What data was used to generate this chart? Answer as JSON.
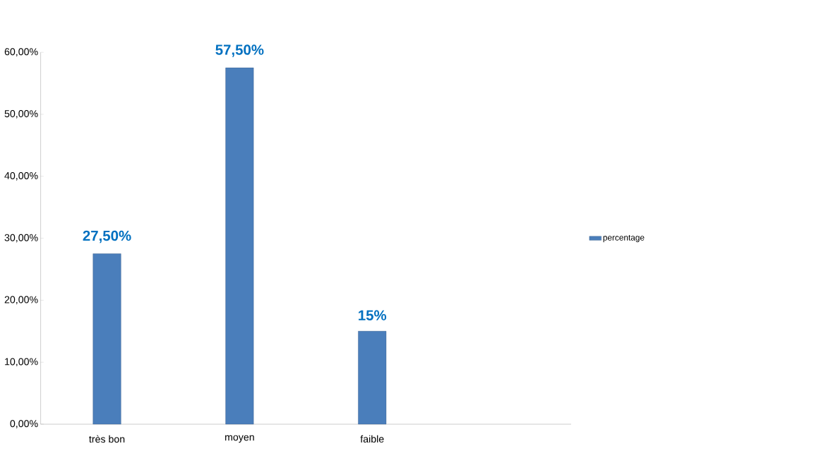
{
  "chart_data": {
    "type": "bar",
    "categories": [
      "très bon",
      "moyen",
      "faible",
      null
    ],
    "series": [
      {
        "name": "percentage",
        "color": "#4a7ebb",
        "values": [
          27.5,
          57.5,
          15,
          null
        ],
        "value_labels": [
          "27,50%",
          "57,50%",
          "15%",
          null
        ]
      }
    ],
    "ylim": [
      0,
      60
    ],
    "yticks": [
      {
        "value": 0,
        "label": "0,00%"
      },
      {
        "value": 10,
        "label": "10,00%"
      },
      {
        "value": 20,
        "label": "20,00%"
      },
      {
        "value": 30,
        "label": "30,00%"
      },
      {
        "value": 40,
        "label": "40,00%"
      },
      {
        "value": 50,
        "label": "50,00%"
      },
      {
        "value": 60,
        "label": "60,00%"
      }
    ],
    "legend": "right",
    "grid": false
  }
}
